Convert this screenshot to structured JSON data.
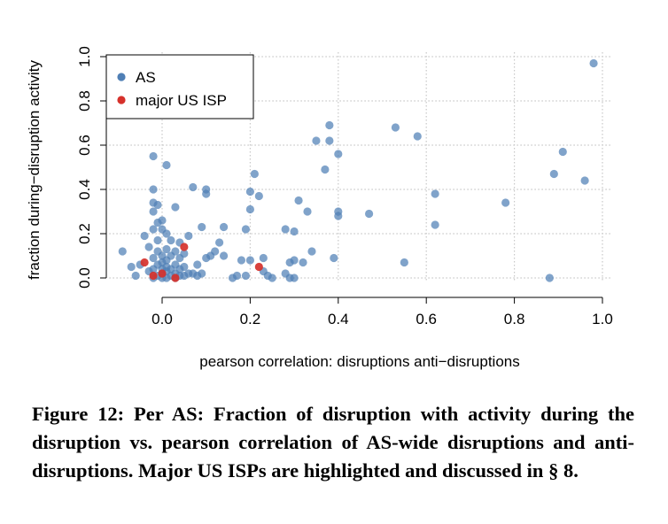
{
  "chart_data": {
    "type": "scatter",
    "title": "",
    "xlabel": "pearson correlation: disruptions anti−disruptions",
    "ylabel": "fraction during−disruption activity",
    "xlim": [
      -0.12,
      1.02
    ],
    "ylim": [
      -0.02,
      1.02
    ],
    "xticks": [
      0.0,
      0.2,
      0.4,
      0.6,
      0.8,
      1.0
    ],
    "xtick_labels": [
      "0.0",
      "0.2",
      "0.4",
      "0.6",
      "0.8",
      "1.0"
    ],
    "yticks": [
      0.0,
      0.2,
      0.4,
      0.6,
      0.8,
      1.0
    ],
    "ytick_labels": [
      "0.0",
      "0.2",
      "0.4",
      "0.6",
      "0.8",
      "1.0"
    ],
    "grid": true,
    "legend": "top-left",
    "series": [
      {
        "name": "AS",
        "color": "#4f7fb5",
        "points": [
          [
            -0.09,
            0.12
          ],
          [
            -0.07,
            0.05
          ],
          [
            -0.06,
            0.01
          ],
          [
            -0.05,
            0.06
          ],
          [
            -0.04,
            0.19
          ],
          [
            -0.03,
            0.03
          ],
          [
            -0.03,
            0.14
          ],
          [
            -0.02,
            0.0
          ],
          [
            -0.02,
            0.04
          ],
          [
            -0.02,
            0.09
          ],
          [
            -0.02,
            0.22
          ],
          [
            -0.02,
            0.3
          ],
          [
            -0.02,
            0.34
          ],
          [
            -0.02,
            0.4
          ],
          [
            -0.02,
            0.55
          ],
          [
            -0.01,
            0.01
          ],
          [
            -0.01,
            0.06
          ],
          [
            -0.01,
            0.12
          ],
          [
            -0.01,
            0.17
          ],
          [
            -0.01,
            0.25
          ],
          [
            -0.01,
            0.33
          ],
          [
            0.0,
            0.0
          ],
          [
            0.0,
            0.02
          ],
          [
            0.0,
            0.04
          ],
          [
            0.0,
            0.07
          ],
          [
            0.0,
            0.1
          ],
          [
            0.0,
            0.22
          ],
          [
            0.0,
            0.26
          ],
          [
            0.01,
            0.0
          ],
          [
            0.01,
            0.03
          ],
          [
            0.01,
            0.05
          ],
          [
            0.01,
            0.08
          ],
          [
            0.01,
            0.13
          ],
          [
            0.01,
            0.2
          ],
          [
            0.01,
            0.51
          ],
          [
            0.02,
            0.01
          ],
          [
            0.02,
            0.04
          ],
          [
            0.02,
            0.1
          ],
          [
            0.02,
            0.17
          ],
          [
            0.03,
            0.0
          ],
          [
            0.03,
            0.02
          ],
          [
            0.03,
            0.06
          ],
          [
            0.03,
            0.12
          ],
          [
            0.03,
            0.32
          ],
          [
            0.04,
            0.01
          ],
          [
            0.04,
            0.04
          ],
          [
            0.04,
            0.09
          ],
          [
            0.04,
            0.16
          ],
          [
            0.05,
            0.01
          ],
          [
            0.05,
            0.05
          ],
          [
            0.05,
            0.11
          ],
          [
            0.06,
            0.02
          ],
          [
            0.06,
            0.19
          ],
          [
            0.07,
            0.02
          ],
          [
            0.07,
            0.41
          ],
          [
            0.08,
            0.01
          ],
          [
            0.08,
            0.06
          ],
          [
            0.09,
            0.02
          ],
          [
            0.09,
            0.23
          ],
          [
            0.1,
            0.09
          ],
          [
            0.1,
            0.38
          ],
          [
            0.1,
            0.4
          ],
          [
            0.11,
            0.1
          ],
          [
            0.12,
            0.12
          ],
          [
            0.13,
            0.16
          ],
          [
            0.14,
            0.1
          ],
          [
            0.14,
            0.23
          ],
          [
            0.16,
            0.0
          ],
          [
            0.17,
            0.01
          ],
          [
            0.18,
            0.08
          ],
          [
            0.19,
            0.01
          ],
          [
            0.19,
            0.22
          ],
          [
            0.2,
            0.08
          ],
          [
            0.2,
            0.31
          ],
          [
            0.2,
            0.39
          ],
          [
            0.21,
            0.47
          ],
          [
            0.22,
            0.37
          ],
          [
            0.23,
            0.03
          ],
          [
            0.23,
            0.09
          ],
          [
            0.24,
            0.01
          ],
          [
            0.25,
            0.0
          ],
          [
            0.28,
            0.02
          ],
          [
            0.28,
            0.22
          ],
          [
            0.29,
            0.0
          ],
          [
            0.29,
            0.07
          ],
          [
            0.3,
            0.0
          ],
          [
            0.3,
            0.08
          ],
          [
            0.3,
            0.21
          ],
          [
            0.31,
            0.35
          ],
          [
            0.32,
            0.07
          ],
          [
            0.33,
            0.3
          ],
          [
            0.34,
            0.12
          ],
          [
            0.35,
            0.62
          ],
          [
            0.37,
            0.49
          ],
          [
            0.38,
            0.62
          ],
          [
            0.38,
            0.69
          ],
          [
            0.39,
            0.09
          ],
          [
            0.4,
            0.28
          ],
          [
            0.4,
            0.3
          ],
          [
            0.4,
            0.56
          ],
          [
            0.47,
            0.29
          ],
          [
            0.53,
            0.68
          ],
          [
            0.55,
            0.07
          ],
          [
            0.58,
            0.64
          ],
          [
            0.62,
            0.24
          ],
          [
            0.62,
            0.38
          ],
          [
            0.78,
            0.34
          ],
          [
            0.88,
            0.0
          ],
          [
            0.89,
            0.47
          ],
          [
            0.91,
            0.57
          ],
          [
            0.96,
            0.44
          ],
          [
            0.98,
            0.97
          ]
        ]
      },
      {
        "name": "major US ISP",
        "color": "#d6312b",
        "points": [
          [
            -0.04,
            0.07
          ],
          [
            -0.02,
            0.01
          ],
          [
            0.0,
            0.02
          ],
          [
            0.03,
            0.0
          ],
          [
            0.05,
            0.14
          ],
          [
            0.22,
            0.05
          ]
        ]
      }
    ]
  },
  "caption": "Figure 12: Per AS: Fraction of disruption with activity during the disruption vs. pearson correlation of AS-wide disruptions and anti-disruptions. Major US ISPs are highlighted and discussed in § 8."
}
